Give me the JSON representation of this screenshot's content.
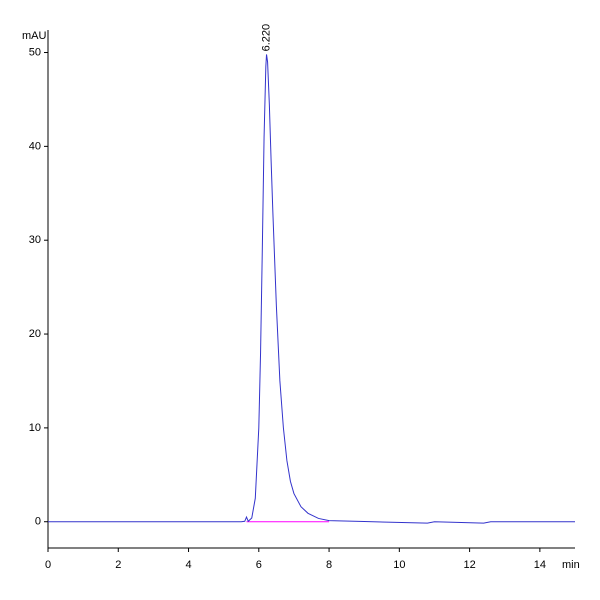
{
  "chart_data": {
    "type": "line",
    "y_label": "mAU",
    "x_label": "min",
    "x": [
      0,
      5.5,
      5.6,
      5.65,
      5.7,
      5.8,
      5.9,
      6.0,
      6.05,
      6.1,
      6.15,
      6.2,
      6.22,
      6.25,
      6.3,
      6.35,
      6.4,
      6.5,
      6.6,
      6.7,
      6.8,
      6.9,
      7.0,
      7.2,
      7.4,
      7.7,
      8.0,
      9.0,
      10.8,
      11.0,
      12.4,
      12.6,
      15
    ],
    "values": [
      0,
      0,
      0.05,
      0.5,
      0.05,
      0.4,
      2.5,
      10,
      18,
      29,
      41,
      48.5,
      49.8,
      49,
      44.5,
      38.5,
      33,
      23,
      15,
      10,
      6.5,
      4.3,
      3,
      1.6,
      0.9,
      0.35,
      0.12,
      0.02,
      -0.15,
      0,
      -0.15,
      0,
      0
    ],
    "color": "#3333cc",
    "baseline": {
      "x": [
        5.65,
        8.0
      ],
      "values": [
        0,
        0
      ],
      "color": "#ff00ff"
    },
    "annotations": [
      {
        "x": 6.22,
        "y": 49.8,
        "text": "6.220"
      }
    ],
    "xlim": [
      0,
      15
    ],
    "ylim": [
      -2.8,
      52.4
    ],
    "xticks": [
      0,
      2,
      4,
      6,
      8,
      10,
      12,
      14
    ],
    "yticks": [
      0,
      10,
      20,
      30,
      40,
      50
    ]
  }
}
